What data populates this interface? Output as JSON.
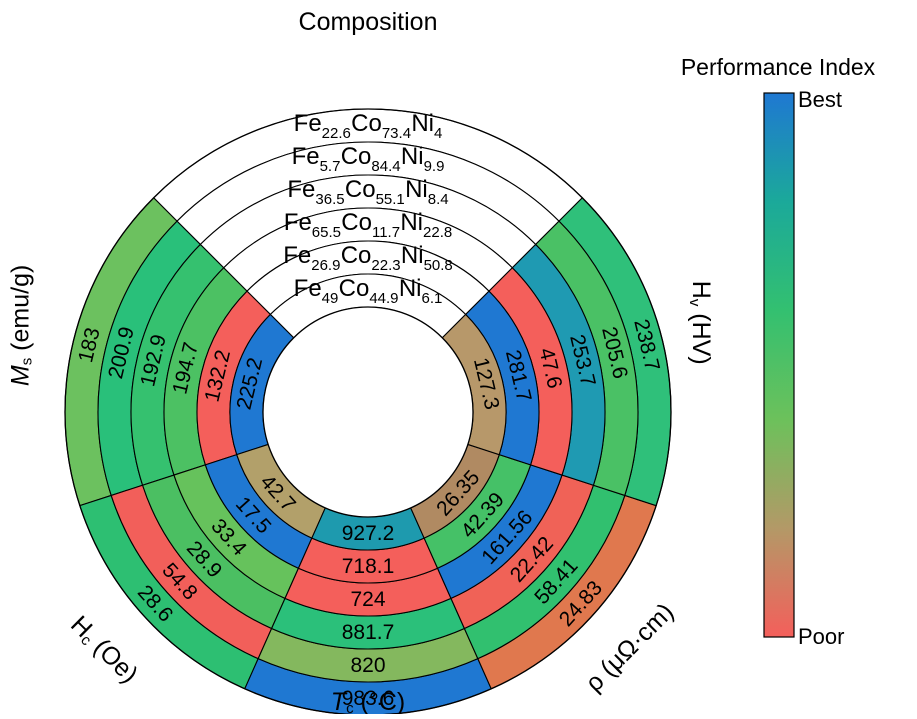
{
  "chart_data": {
    "type": "radial-segmented-ring",
    "title": "Composition",
    "compositions": [
      {
        "fe": "22.6",
        "co": "73.4",
        "ni": "4"
      },
      {
        "fe": "5.7",
        "co": "84.4",
        "ni": "9.9"
      },
      {
        "fe": "36.5",
        "co": "55.1",
        "ni": "8.4"
      },
      {
        "fe": "65.5",
        "co": "11.7",
        "ni": "22.8"
      },
      {
        "fe": "26.9",
        "co": "22.3",
        "ni": "50.8"
      },
      {
        "fe": "49",
        "co": "44.9",
        "ni": "6.1"
      }
    ],
    "properties": [
      {
        "key": "Ms",
        "label_main": "M",
        "label_sub": "s",
        "label_rest": " (emu/g)",
        "values": [
          "183",
          "200.9",
          "192.9",
          "194.7",
          "132.2",
          "225.2"
        ],
        "colors": [
          "#6cc15f",
          "#29c07a",
          "#35c16f",
          "#4cc163",
          "#f45f5b",
          "#1f78d2"
        ]
      },
      {
        "key": "Hc",
        "label_main": "H",
        "label_sub": "c",
        "label_rest": " (Oe)",
        "values": [
          "28.6",
          "54.8",
          "28.9",
          "33.4",
          "17.5",
          "42.7"
        ],
        "colors": [
          "#2dbf72",
          "#f25f5a",
          "#4bbf62",
          "#66c25c",
          "#1f78d2",
          "#b2a06a"
        ]
      },
      {
        "key": "Tc",
        "label_main": "T",
        "label_sub": "c",
        "label_rest": " (°C)",
        "values": [
          "983.6",
          "820",
          "881.7",
          "724",
          "718.1",
          "927.2"
        ],
        "colors": [
          "#1f78d2",
          "#84b85e",
          "#2bc07a",
          "#f45f5b",
          "#f45f5b",
          "#1e9aae"
        ]
      },
      {
        "key": "rho",
        "label_main": "ρ",
        "label_sub": "",
        "label_rest": " (μΩ·cm)",
        "values": [
          "24.83",
          "58.41",
          "22.42",
          "161.56",
          "42.39",
          "26.35"
        ],
        "colors": [
          "#e0784e",
          "#31c06f",
          "#f06257",
          "#1f78d2",
          "#45c167",
          "#b08a62"
        ]
      },
      {
        "key": "Hv",
        "label_main": "H",
        "label_sub": "v",
        "label_rest": " (HV)",
        "values": [
          "238.7",
          "205.6",
          "253.7",
          "47.6",
          "281.7",
          "127.3"
        ],
        "colors": [
          "#2fc07a",
          "#4ac165",
          "#1f9ab2",
          "#f45f5b",
          "#1f78d2",
          "#b7986a"
        ]
      }
    ],
    "colorbar": {
      "title": "Performance Index",
      "top_label": "Best",
      "bottom_label": "Poor",
      "colors": [
        "#1f78d2",
        "#1ba99a",
        "#33c070",
        "#6cc15b",
        "#b39967",
        "#f45f5b"
      ]
    }
  }
}
